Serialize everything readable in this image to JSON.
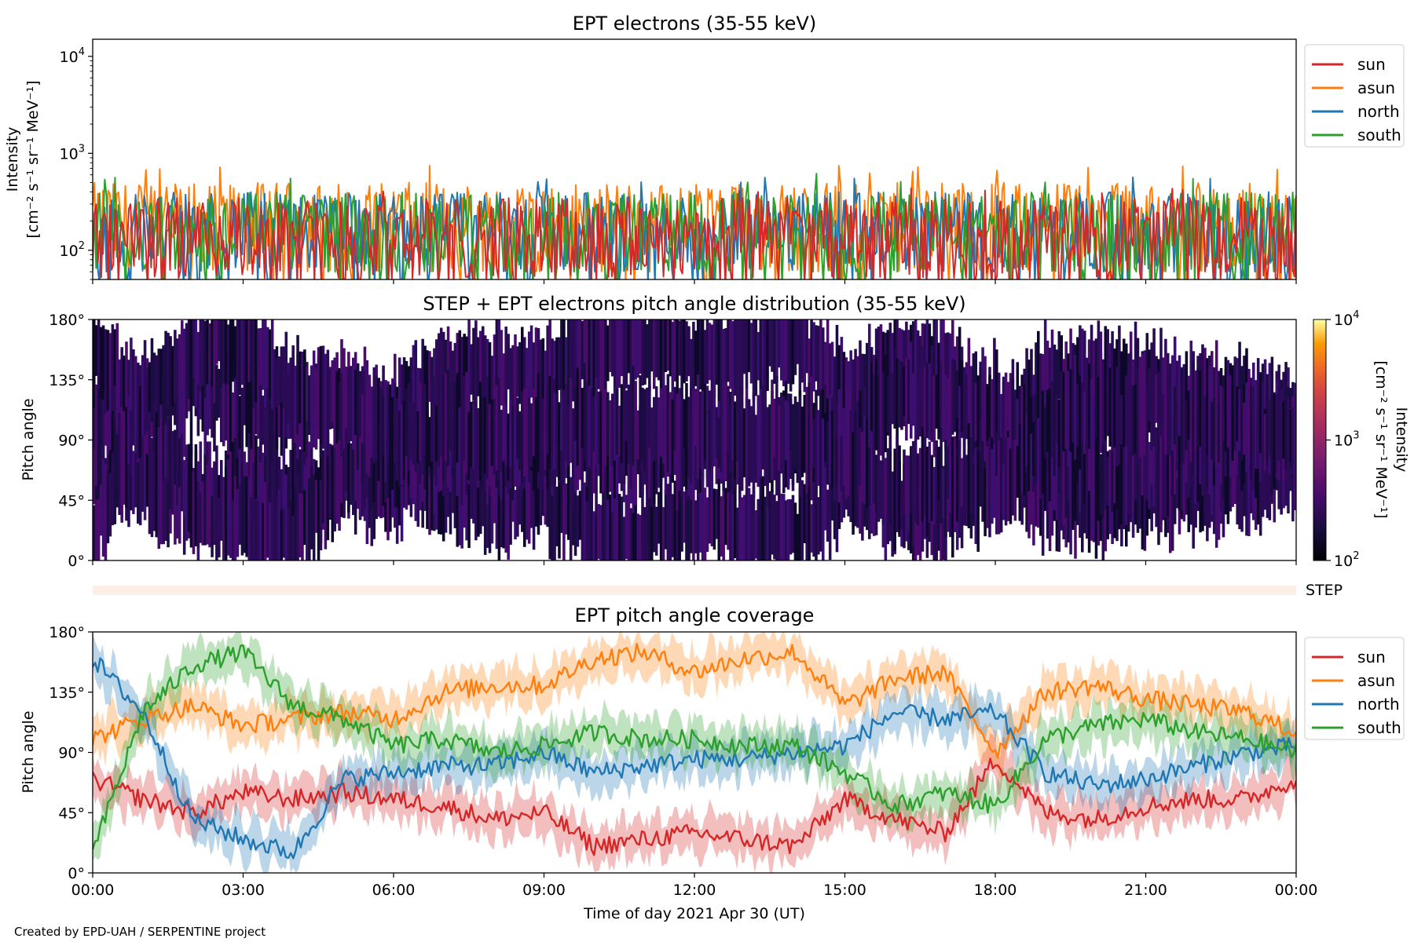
{
  "footer": {
    "credit": "Created by EPD-UAH / SERPENTINE project"
  },
  "shared_x": {
    "label": "Time of day 2021 Apr 30 (UT)",
    "ticks": [
      "00:00",
      "03:00",
      "06:00",
      "09:00",
      "12:00",
      "15:00",
      "18:00",
      "21:00",
      "00:00"
    ],
    "range_hours": [
      0,
      24
    ]
  },
  "colors": {
    "sun": "#d62728",
    "asun": "#ff7f0e",
    "north": "#1f77b4",
    "south": "#2ca02c"
  },
  "chart_data": [
    {
      "type": "line",
      "title": "EPT electrons (35-55 keV)",
      "ylabel_line1": "Intensity",
      "ylabel_line2": "[cm⁻² s⁻¹ sr⁻¹ MeV⁻¹]",
      "yscale": "log",
      "ylim": [
        50,
        15000
      ],
      "yticks": [
        {
          "value": 100,
          "base": "10",
          "exp": "2"
        },
        {
          "value": 1000,
          "base": "10",
          "exp": "3"
        },
        {
          "value": 10000,
          "base": "10",
          "exp": "4"
        }
      ],
      "legend": "top-right, outside",
      "series": [
        {
          "name": "sun",
          "color": "#d62728",
          "typical_range": [
            50,
            350
          ],
          "peak": 450
        },
        {
          "name": "asun",
          "color": "#ff7f0e",
          "typical_range": [
            60,
            500
          ],
          "peak": 750
        },
        {
          "name": "north",
          "color": "#1f77b4",
          "typical_range": [
            60,
            400
          ],
          "peak": 600
        },
        {
          "name": "south",
          "color": "#2ca02c",
          "typical_range": [
            60,
            400
          ],
          "peak": 620
        }
      ]
    },
    {
      "type": "heatmap",
      "title": "STEP + EPT electrons pitch angle distribution (35-55 keV)",
      "ylabel": "Pitch angle",
      "ylim": [
        0,
        180
      ],
      "yticks": [
        "0°",
        "45°",
        "90°",
        "135°",
        "180°"
      ],
      "colorbar": {
        "label_line1": "Intensity",
        "label_line2": "[cm⁻² s⁻¹ sr⁻¹ MeV⁻¹]",
        "scale": "log",
        "range": [
          100,
          10000
        ],
        "ticks": [
          {
            "value": 100,
            "base": "10",
            "exp": "2"
          },
          {
            "value": 1000,
            "base": "10",
            "exp": "3"
          },
          {
            "value": 10000,
            "base": "10",
            "exp": "4"
          }
        ]
      }
    },
    {
      "type": "band",
      "label": "STEP",
      "color": "#fdeee8"
    },
    {
      "type": "line",
      "title": "EPT pitch angle coverage",
      "ylabel": "Pitch angle",
      "ylim": [
        0,
        180
      ],
      "yticks": [
        "0°",
        "45°",
        "90°",
        "135°",
        "180°"
      ],
      "legend": "top-right, outside",
      "series": [
        {
          "name": "sun",
          "color": "#d62728",
          "x_hours": [
            0,
            1,
            2,
            3,
            4,
            5,
            6,
            7,
            8,
            9,
            10,
            11,
            12,
            13,
            14,
            15,
            16,
            17,
            18,
            19,
            20,
            21,
            22,
            23,
            24
          ],
          "values": [
            70,
            55,
            45,
            60,
            55,
            60,
            55,
            50,
            40,
            45,
            20,
            25,
            30,
            25,
            20,
            55,
            40,
            30,
            85,
            45,
            40,
            50,
            55,
            55,
            70
          ]
        },
        {
          "name": "asun",
          "color": "#ff7f0e",
          "x_hours": [
            0,
            1,
            2,
            3,
            4,
            5,
            6,
            7,
            8,
            9,
            10,
            11,
            12,
            13,
            14,
            15,
            16,
            17,
            18,
            19,
            20,
            21,
            22,
            23,
            24
          ],
          "values": [
            100,
            115,
            125,
            110,
            115,
            120,
            115,
            135,
            140,
            140,
            160,
            165,
            150,
            160,
            165,
            125,
            145,
            150,
            90,
            135,
            140,
            130,
            125,
            120,
            105
          ]
        },
        {
          "name": "north",
          "color": "#1f77b4",
          "x_hours": [
            0,
            1,
            2,
            3,
            4,
            5,
            6,
            7,
            8,
            9,
            10,
            11,
            12,
            13,
            14,
            15,
            16,
            17,
            18,
            19,
            20,
            21,
            22,
            23,
            24
          ],
          "values": [
            160,
            120,
            40,
            25,
            15,
            70,
            75,
            80,
            80,
            90,
            75,
            80,
            85,
            85,
            90,
            95,
            120,
            115,
            120,
            75,
            65,
            70,
            80,
            90,
            95
          ]
        },
        {
          "name": "south",
          "color": "#2ca02c",
          "x_hours": [
            0,
            1,
            2,
            3,
            4,
            5,
            6,
            7,
            8,
            9,
            10,
            11,
            12,
            13,
            14,
            15,
            16,
            17,
            18,
            19,
            20,
            21,
            22,
            23,
            24
          ],
          "values": [
            15,
            120,
            155,
            165,
            125,
            115,
            95,
            100,
            90,
            95,
            105,
            100,
            100,
            95,
            95,
            75,
            50,
            60,
            50,
            100,
            110,
            115,
            105,
            100,
            90
          ]
        }
      ]
    }
  ]
}
